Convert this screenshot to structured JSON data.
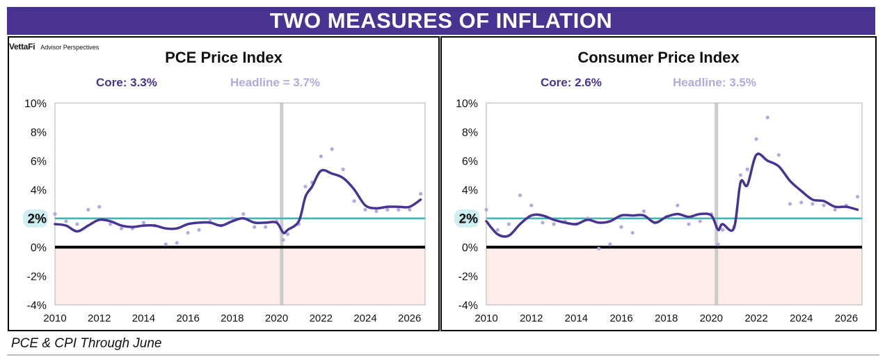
{
  "banner_title": "TWO MEASURES OF INFLATION",
  "logo": {
    "brand": "VettaFi",
    "subbrand": "Advisor Perspectives"
  },
  "footer_note": "PCE & CPI Through June",
  "colors": {
    "banner": "#483393",
    "core": "#483393",
    "headline": "#b3a9e0",
    "target": "#3fb8b0",
    "negative_zone": "#fdecea",
    "recession": "#cccccc"
  },
  "panels": [
    {
      "title": "PCE Price Index",
      "core_label": "Core: 3.3%",
      "headline_label": "Headline = 3.7%"
    },
    {
      "title": "Consumer Price Index",
      "core_label": "Core: 2.6%",
      "headline_label": "Headline: 3.5%"
    }
  ],
  "chart_data": [
    {
      "type": "line",
      "title": "PCE Price Index",
      "y_ticks": [
        "10%",
        "8%",
        "6%",
        "4%",
        "2%",
        "0%",
        "-2%",
        "-4%"
      ],
      "x_ticks": [
        "2010",
        "2012",
        "2014",
        "2016",
        "2018",
        "2020",
        "2022",
        "2024",
        "2026"
      ],
      "ylim": [
        -4,
        10
      ],
      "xlim": [
        2010,
        2026.7
      ],
      "target_line": {
        "value": 2,
        "label": "2%"
      },
      "recession_band": [
        2020.15,
        2020.3
      ],
      "series": [
        {
          "name": "Core",
          "style": "line",
          "x": [
            2010.0,
            2010.5,
            2011.0,
            2011.5,
            2012.0,
            2012.5,
            2013.0,
            2013.5,
            2014.0,
            2014.5,
            2015.0,
            2015.5,
            2016.0,
            2016.5,
            2017.0,
            2017.5,
            2018.0,
            2018.5,
            2019.0,
            2019.5,
            2020.0,
            2020.3,
            2020.5,
            2021.0,
            2021.3,
            2021.6,
            2022.0,
            2022.5,
            2023.0,
            2023.5,
            2024.0,
            2024.5,
            2025.0,
            2025.5,
            2026.0,
            2026.5
          ],
          "y": [
            1.6,
            1.5,
            1.1,
            1.5,
            1.9,
            1.8,
            1.5,
            1.4,
            1.5,
            1.5,
            1.3,
            1.3,
            1.6,
            1.7,
            1.7,
            1.5,
            1.8,
            2.0,
            1.7,
            1.7,
            1.7,
            1.0,
            1.2,
            1.8,
            3.5,
            4.2,
            5.3,
            5.1,
            4.8,
            4.0,
            2.9,
            2.7,
            2.8,
            2.8,
            2.8,
            3.3
          ]
        },
        {
          "name": "Headline",
          "style": "dots",
          "x": [
            2010.0,
            2010.5,
            2011.0,
            2011.5,
            2012.0,
            2012.5,
            2013.0,
            2013.5,
            2014.0,
            2014.5,
            2015.0,
            2015.5,
            2016.0,
            2016.5,
            2017.0,
            2017.5,
            2018.0,
            2018.5,
            2019.0,
            2019.5,
            2020.0,
            2020.3,
            2020.5,
            2021.0,
            2021.3,
            2021.6,
            2022.0,
            2022.5,
            2023.0,
            2023.5,
            2024.0,
            2024.5,
            2025.0,
            2025.5,
            2026.0,
            2026.5
          ],
          "y": [
            2.3,
            1.8,
            1.6,
            2.6,
            2.8,
            1.6,
            1.3,
            1.3,
            1.7,
            1.5,
            0.2,
            0.3,
            1.0,
            1.2,
            1.9,
            1.5,
            2.0,
            2.3,
            1.4,
            1.4,
            1.8,
            0.5,
            0.9,
            1.6,
            4.2,
            4.5,
            6.3,
            6.8,
            5.4,
            3.2,
            2.6,
            2.5,
            2.6,
            2.6,
            2.6,
            3.7
          ]
        }
      ]
    },
    {
      "type": "line",
      "title": "Consumer Price Index",
      "y_ticks": [
        "10%",
        "8%",
        "6%",
        "4%",
        "2%",
        "0%",
        "-2%",
        "-4%"
      ],
      "x_ticks": [
        "2010",
        "2012",
        "2014",
        "2016",
        "2018",
        "2020",
        "2022",
        "2024",
        "2026"
      ],
      "ylim": [
        -4,
        10
      ],
      "xlim": [
        2010,
        2026.7
      ],
      "target_line": {
        "value": 2,
        "label": "2%"
      },
      "recession_band": [
        2020.15,
        2020.3
      ],
      "series": [
        {
          "name": "Core",
          "style": "line",
          "x": [
            2010.0,
            2010.5,
            2011.0,
            2011.5,
            2012.0,
            2012.5,
            2013.0,
            2013.5,
            2014.0,
            2014.5,
            2015.0,
            2015.5,
            2016.0,
            2016.5,
            2017.0,
            2017.5,
            2018.0,
            2018.5,
            2019.0,
            2019.5,
            2020.0,
            2020.3,
            2020.5,
            2021.0,
            2021.3,
            2021.6,
            2022.0,
            2022.5,
            2023.0,
            2023.5,
            2024.0,
            2024.5,
            2025.0,
            2025.5,
            2026.0,
            2026.5
          ],
          "y": [
            1.8,
            0.9,
            0.8,
            1.6,
            2.2,
            2.2,
            1.9,
            1.7,
            1.6,
            1.9,
            1.7,
            1.8,
            2.2,
            2.2,
            2.2,
            1.7,
            2.1,
            2.3,
            2.1,
            2.3,
            2.2,
            1.2,
            1.6,
            1.3,
            4.5,
            4.3,
            6.4,
            6.0,
            5.6,
            4.6,
            3.9,
            3.3,
            3.2,
            2.8,
            2.8,
            2.6
          ]
        },
        {
          "name": "Headline",
          "style": "dots",
          "x": [
            2010.0,
            2010.5,
            2011.0,
            2011.5,
            2012.0,
            2012.5,
            2013.0,
            2013.5,
            2014.0,
            2014.5,
            2015.0,
            2015.5,
            2016.0,
            2016.5,
            2017.0,
            2017.5,
            2018.0,
            2018.5,
            2019.0,
            2019.5,
            2020.0,
            2020.3,
            2020.5,
            2021.0,
            2021.3,
            2021.6,
            2022.0,
            2022.5,
            2023.0,
            2023.5,
            2024.0,
            2024.5,
            2025.0,
            2025.5,
            2026.0,
            2026.5
          ],
          "y": [
            2.6,
            1.2,
            1.6,
            3.6,
            2.9,
            1.7,
            1.6,
            1.8,
            1.6,
            2.0,
            -0.1,
            0.2,
            1.4,
            1.0,
            2.5,
            1.7,
            2.1,
            2.9,
            1.6,
            1.8,
            2.3,
            0.2,
            1.2,
            1.4,
            5.0,
            5.4,
            7.5,
            9.0,
            6.4,
            3.0,
            3.1,
            3.0,
            2.9,
            2.6,
            2.9,
            3.5
          ]
        }
      ]
    }
  ]
}
